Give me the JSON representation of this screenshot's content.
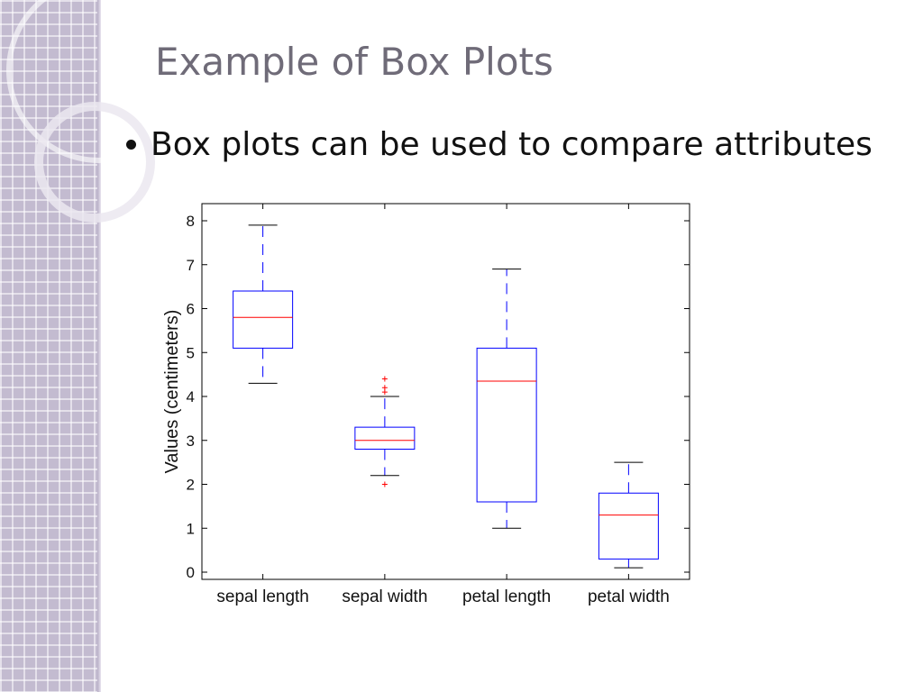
{
  "slide": {
    "title": "Example of Box Plots",
    "bullets": [
      "Box plots can be used to compare attributes"
    ]
  },
  "colors": {
    "sidebar": "#c3bbd0",
    "title": "#6f6b78",
    "box": "#0000ff",
    "median": "#ff0000",
    "outlier": "#ff0000"
  },
  "chart_data": {
    "type": "box",
    "ylabel": "Values (centimeters)",
    "ylim": [
      0,
      8
    ],
    "yticks": [
      0,
      1,
      2,
      3,
      4,
      5,
      6,
      7,
      8
    ],
    "categories": [
      "sepal length",
      "sepal width",
      "petal length",
      "petal width"
    ],
    "boxes": [
      {
        "whisker_low": 4.3,
        "q1": 5.1,
        "median": 5.8,
        "q3": 6.4,
        "whisker_high": 7.9,
        "outliers": []
      },
      {
        "whisker_low": 2.2,
        "q1": 2.8,
        "median": 3.0,
        "q3": 3.3,
        "whisker_high": 4.0,
        "outliers": [
          2.0,
          4.1,
          4.2,
          4.4
        ]
      },
      {
        "whisker_low": 1.0,
        "q1": 1.6,
        "median": 4.35,
        "q3": 5.1,
        "whisker_high": 6.9,
        "outliers": []
      },
      {
        "whisker_low": 0.1,
        "q1": 0.3,
        "median": 1.3,
        "q3": 1.8,
        "whisker_high": 2.5,
        "outliers": []
      }
    ],
    "grid": false,
    "legend": "none"
  }
}
